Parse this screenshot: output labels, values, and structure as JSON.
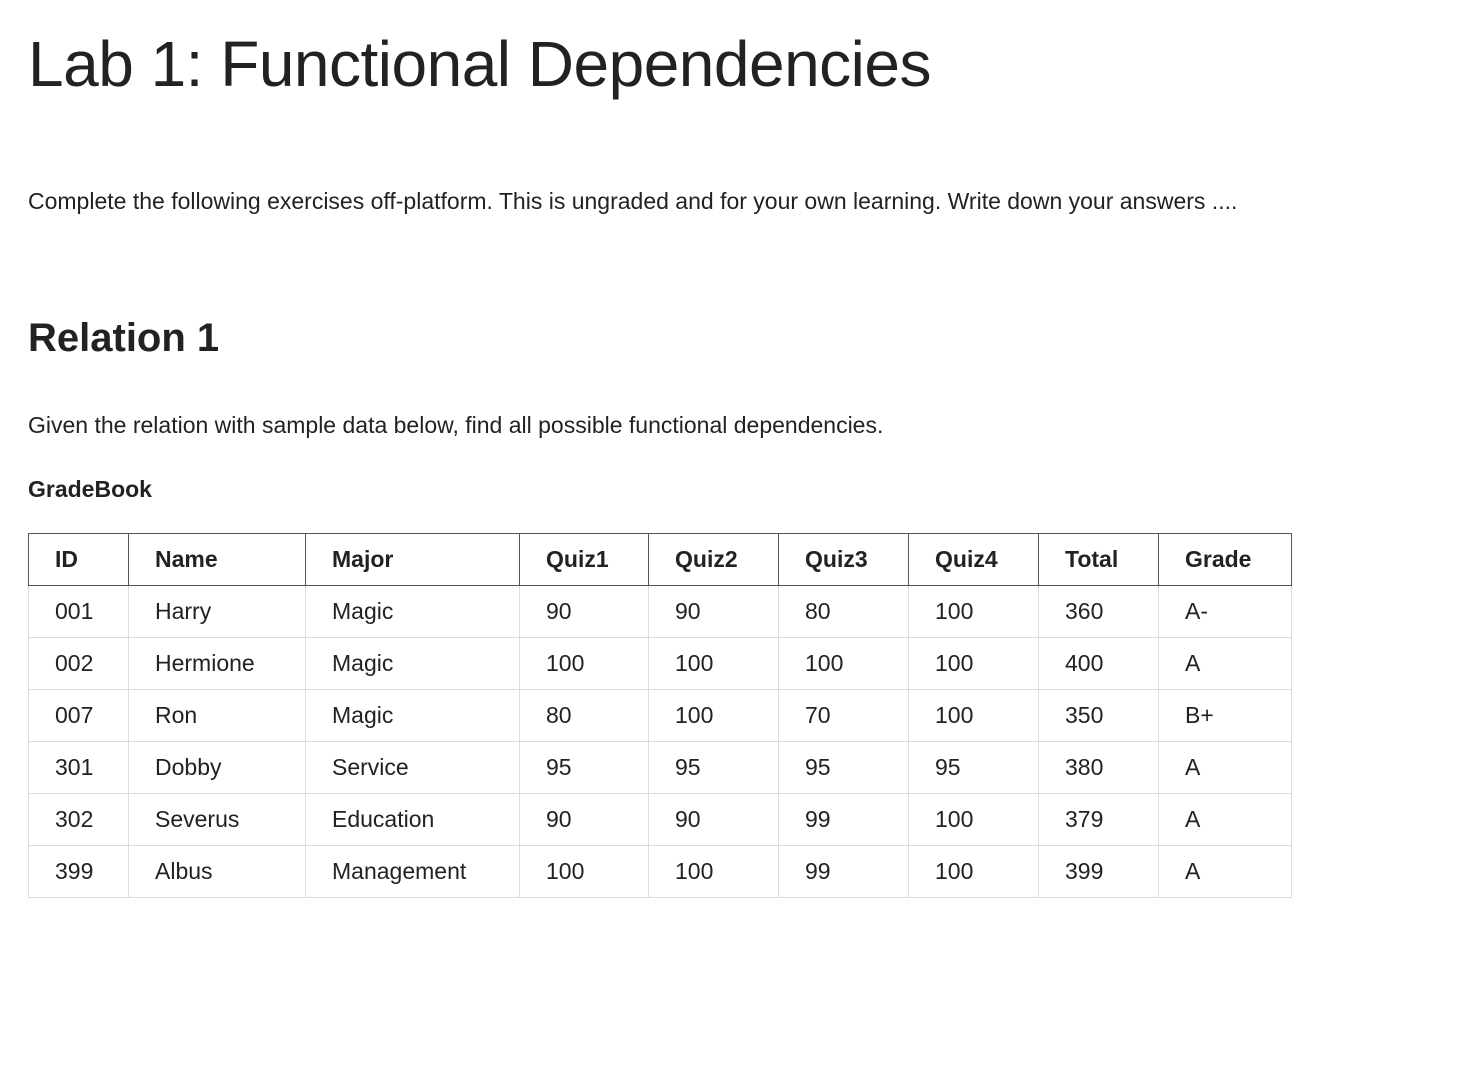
{
  "page": {
    "title": "Lab 1: Functional Dependencies",
    "intro": "Complete the following exercises off-platform. This is ungraded and for your own learning. Write down your answers ...."
  },
  "section": {
    "title": "Relation 1",
    "instructions": "Given the relation with sample data below, find all possible functional dependencies.",
    "table_caption": "GradeBook"
  },
  "table": {
    "headers": [
      "ID",
      "Name",
      "Major",
      "Quiz1",
      "Quiz2",
      "Quiz3",
      "Quiz4",
      "Total",
      "Grade"
    ],
    "rows": [
      [
        "001",
        "Harry",
        "Magic",
        "90",
        "90",
        "80",
        "100",
        "360",
        "A-"
      ],
      [
        "002",
        "Hermione",
        "Magic",
        "100",
        "100",
        "100",
        "100",
        "400",
        "A"
      ],
      [
        "007",
        "Ron",
        "Magic",
        "80",
        "100",
        "70",
        "100",
        "350",
        "B+"
      ],
      [
        "301",
        "Dobby",
        "Service",
        "95",
        "95",
        "95",
        "95",
        "380",
        "A"
      ],
      [
        "302",
        "Severus",
        "Education",
        "90",
        "90",
        "99",
        "100",
        "379",
        "A"
      ],
      [
        "399",
        "Albus",
        "Management",
        "100",
        "100",
        "99",
        "100",
        "399",
        "A"
      ]
    ]
  }
}
